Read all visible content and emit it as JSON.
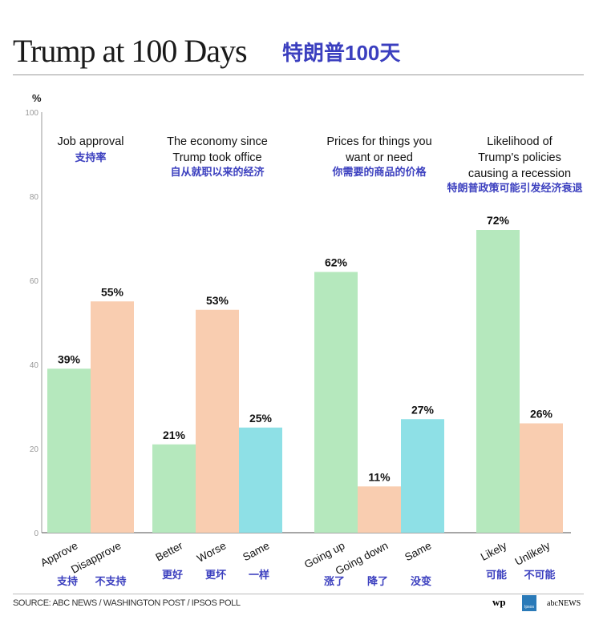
{
  "header": {
    "title": "Trump at 100 Days",
    "title_cn": "特朗普100天"
  },
  "footer": {
    "source": "SOURCE: ABC NEWS / WASHINGTON POST / IPSOS POLL",
    "logos": [
      "wp",
      "Ipsos",
      "abcNEWS"
    ]
  },
  "colors": {
    "green": "#b5e8bd",
    "peach": "#f9cdb0",
    "cyan": "#8ee0e6",
    "cn_text": "#3b3fbf"
  },
  "chart_data": {
    "type": "bar",
    "ylabel": "%",
    "ylim": [
      0,
      100
    ],
    "yticks": [
      0,
      20,
      40,
      60,
      80,
      100
    ],
    "grid": false,
    "groups": [
      {
        "title": "Job approval",
        "title_cn": "支持率",
        "bars": [
          {
            "label": "Approve",
            "label_cn": "支持",
            "value": 39,
            "value_label": "39%",
            "color": "green"
          },
          {
            "label": "Disapprove",
            "label_cn": "不支持",
            "value": 55,
            "value_label": "55%",
            "color": "peach"
          }
        ]
      },
      {
        "title": "The economy since Trump took office",
        "title_cn": "自从就职以来的经济",
        "bars": [
          {
            "label": "Better",
            "label_cn": "更好",
            "value": 21,
            "value_label": "21%",
            "color": "green"
          },
          {
            "label": "Worse",
            "label_cn": "更坏",
            "value": 53,
            "value_label": "53%",
            "color": "peach"
          },
          {
            "label": "Same",
            "label_cn": "一样",
            "value": 25,
            "value_label": "25%",
            "color": "cyan"
          }
        ]
      },
      {
        "title": "Prices for things you want or need",
        "title_cn": "你需要的商品的价格",
        "bars": [
          {
            "label": "Going up",
            "label_cn": "涨了",
            "value": 62,
            "value_label": "62%",
            "color": "green"
          },
          {
            "label": "Going down",
            "label_cn": "降了",
            "value": 11,
            "value_label": "11%",
            "color": "peach"
          },
          {
            "label": "Same",
            "label_cn": "没变",
            "value": 27,
            "value_label": "27%",
            "color": "cyan"
          }
        ]
      },
      {
        "title": "Likelihood of Trump's policies causing a recession",
        "title_cn": "特朗普政策可能引发经济衰退",
        "bars": [
          {
            "label": "Likely",
            "label_cn": "可能",
            "value": 72,
            "value_label": "72%",
            "color": "green"
          },
          {
            "label": "Unlikely",
            "label_cn": "不可能",
            "value": 26,
            "value_label": "26%",
            "color": "peach"
          }
        ]
      }
    ]
  }
}
